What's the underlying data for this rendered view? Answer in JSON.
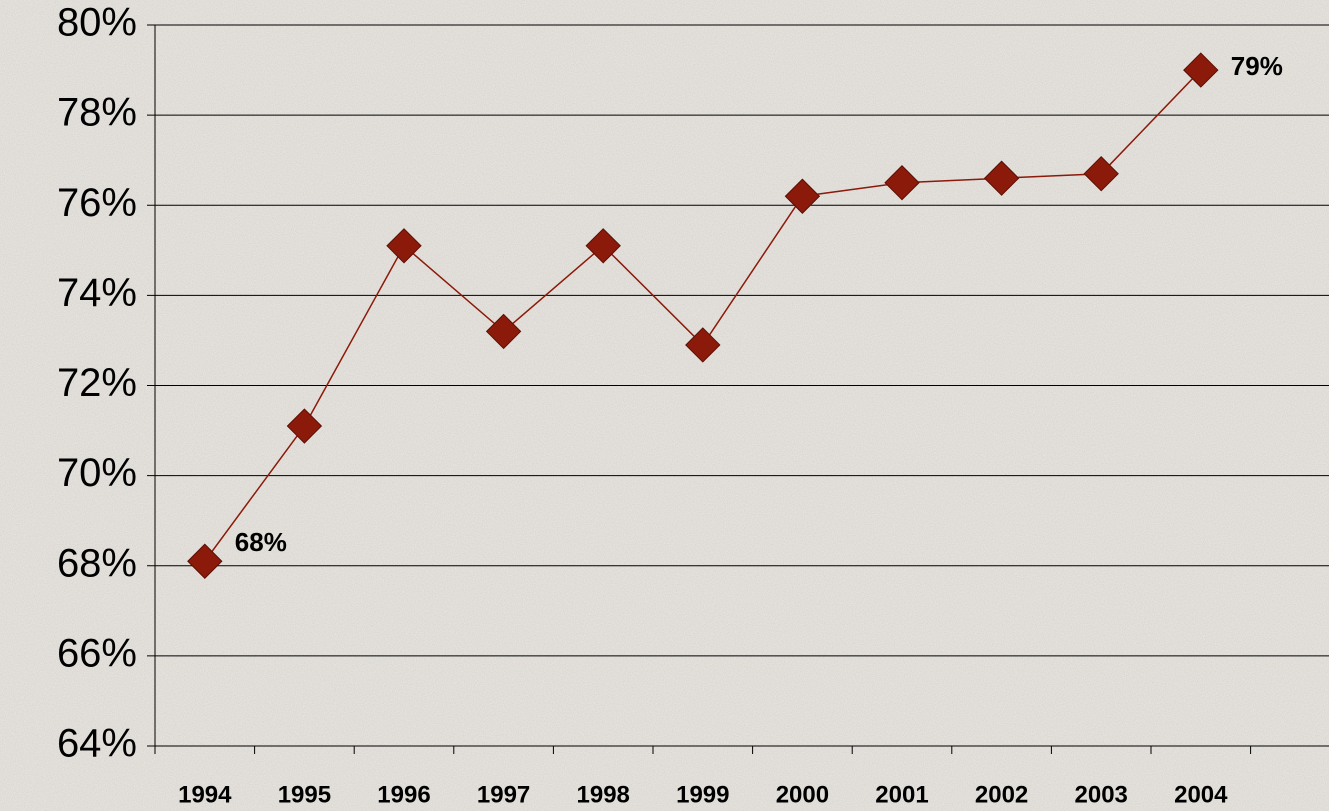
{
  "chart_data": {
    "type": "line",
    "categories": [
      "1994",
      "1995",
      "1996",
      "1997",
      "1998",
      "1999",
      "2000",
      "2001",
      "2002",
      "2003",
      "2004"
    ],
    "series": [
      {
        "color": "#8b1a0a",
        "values": [
          68.1,
          71.1,
          75.1,
          73.2,
          75.1,
          72.9,
          76.2,
          76.5,
          76.6,
          76.7,
          79.0
        ]
      }
    ],
    "value_labels": [
      "68%",
      null,
      null,
      null,
      null,
      null,
      null,
      null,
      null,
      null,
      "79%"
    ],
    "ylim": [
      64,
      80
    ],
    "yticks": [
      {
        "value": 64,
        "label": "64%"
      },
      {
        "value": 66,
        "label": "66%"
      },
      {
        "value": 68,
        "label": "68%"
      },
      {
        "value": 70,
        "label": "70%"
      },
      {
        "value": 72,
        "label": "72%"
      },
      {
        "value": 74,
        "label": "74%"
      },
      {
        "value": 76,
        "label": "76%"
      },
      {
        "value": 78,
        "label": "78%"
      },
      {
        "value": 80,
        "label": "80%"
      }
    ],
    "grid": true
  }
}
